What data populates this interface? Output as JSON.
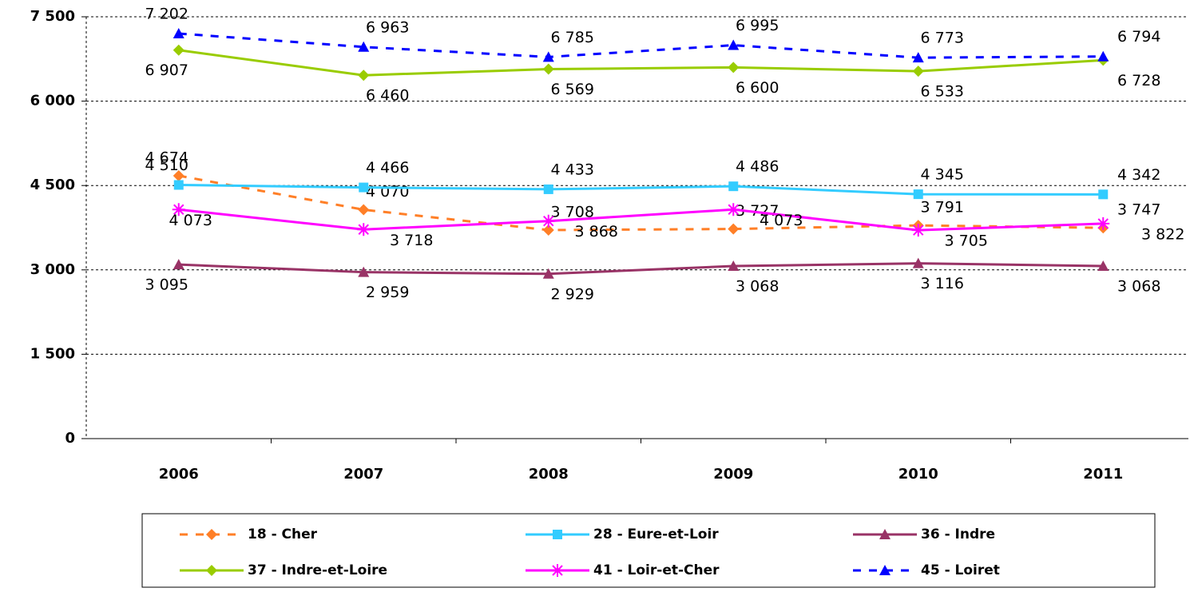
{
  "chart_data": {
    "type": "line",
    "categories": [
      "2006",
      "2007",
      "2008",
      "2009",
      "2010",
      "2011"
    ],
    "ylim": [
      0,
      7500
    ],
    "yticks": [
      {
        "value": 0,
        "label": "0"
      },
      {
        "value": 1500,
        "label": "1 500"
      },
      {
        "value": 3000,
        "label": "3 000"
      },
      {
        "value": 4500,
        "label": "4 500"
      },
      {
        "value": 6000,
        "label": "6 000"
      },
      {
        "value": 7500,
        "label": "7 500"
      }
    ],
    "grid": true,
    "legend": "bottom",
    "series": [
      {
        "name": "18 - Cher",
        "color": "#FF7F27",
        "marker": "diamond",
        "dash": true,
        "values": [
          4674,
          4070,
          3708,
          3727,
          3791,
          3747
        ],
        "value_labels": [
          "4 674",
          "4 070",
          "3 708",
          "3 727",
          "3 791",
          "3 747"
        ]
      },
      {
        "name": "28 - Eure-et-Loir",
        "color": "#33CCFF",
        "marker": "square",
        "dash": false,
        "values": [
          4510,
          4466,
          4433,
          4486,
          4345,
          4342
        ],
        "value_labels": [
          "4 510",
          "4 466",
          "4 433",
          "4 486",
          "4 345",
          "4 342"
        ]
      },
      {
        "name": "36 - Indre",
        "color": "#993366",
        "marker": "triangle",
        "dash": false,
        "values": [
          3095,
          2959,
          2929,
          3068,
          3116,
          3068
        ],
        "value_labels": [
          "3 095",
          "2 959",
          "2 929",
          "3 068",
          "3 116",
          "3 068"
        ]
      },
      {
        "name": "37 - Indre-et-Loire",
        "color": "#99CC00",
        "marker": "diamond",
        "dash": false,
        "values": [
          6907,
          6460,
          6569,
          6600,
          6533,
          6728
        ],
        "value_labels": [
          "6 907",
          "6 460",
          "6 569",
          "6 600",
          "6 533",
          "6 728"
        ]
      },
      {
        "name": "41 - Loir-et-Cher",
        "color": "#FF00FF",
        "marker": "star",
        "dash": false,
        "values": [
          4073,
          3718,
          3868,
          4073,
          3705,
          3822
        ],
        "value_labels": [
          "4 073",
          "3 718",
          "3 868",
          "4 073",
          "3 705",
          "3 822"
        ]
      },
      {
        "name": "45 - Loiret",
        "color": "#0000FF",
        "marker": "triangle",
        "dash": true,
        "values": [
          7202,
          6963,
          6785,
          6995,
          6773,
          6794
        ],
        "value_labels": [
          "7 202",
          "6 963",
          "6 785",
          "6 995",
          "6 773",
          "6 794"
        ]
      }
    ]
  }
}
